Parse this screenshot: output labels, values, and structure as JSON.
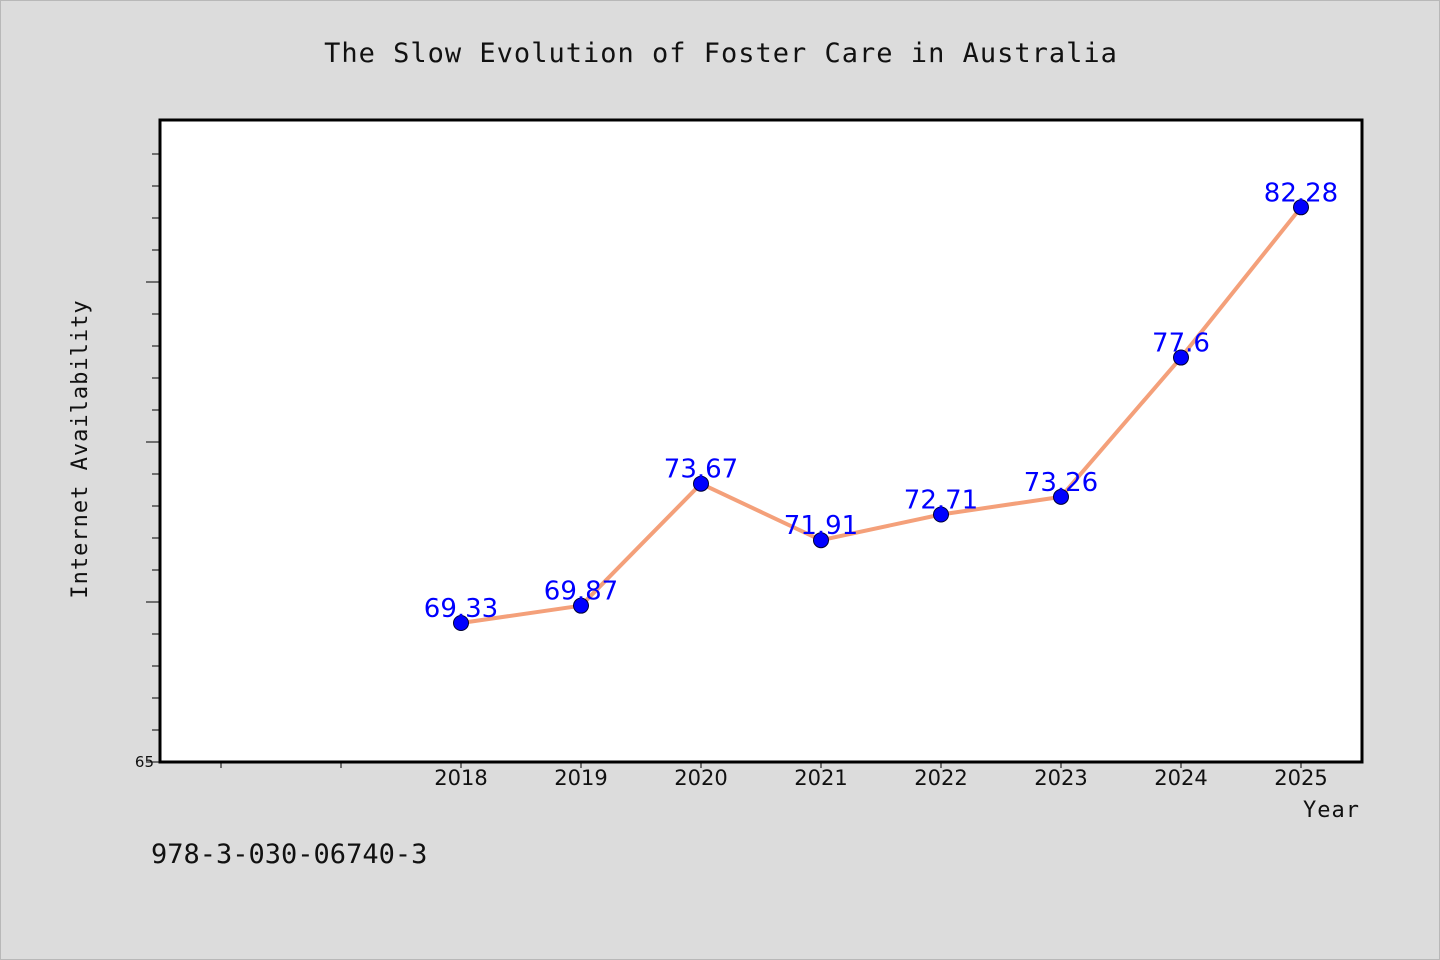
{
  "chart_data": {
    "type": "line",
    "title": "The Slow Evolution of Foster Care in Australia",
    "xlabel": "Year",
    "ylabel": "Internet Availability",
    "x": [
      "2018",
      "2019",
      "2020",
      "2021",
      "2022",
      "2023",
      "2024",
      "2025"
    ],
    "series": [
      {
        "values": [
          69.33,
          69.87,
          73.67,
          71.91,
          72.71,
          73.26,
          77.6,
          82.28
        ],
        "labels": [
          "69.33",
          "69.87",
          "73.67",
          "71.91",
          "72.71",
          "73.26",
          "77.6",
          "82.28"
        ]
      }
    ],
    "ylim": [
      65,
      85
    ],
    "y_tick_labels": [
      "65"
    ],
    "grid": false,
    "colors": {
      "line": "#f4a07a",
      "marker": "#0000ff",
      "data_label": "#0000ff",
      "background": "#dcdcdc",
      "plot_area": "#ffffff"
    }
  },
  "footer": {
    "isbn": "978-3-030-06740-3"
  }
}
